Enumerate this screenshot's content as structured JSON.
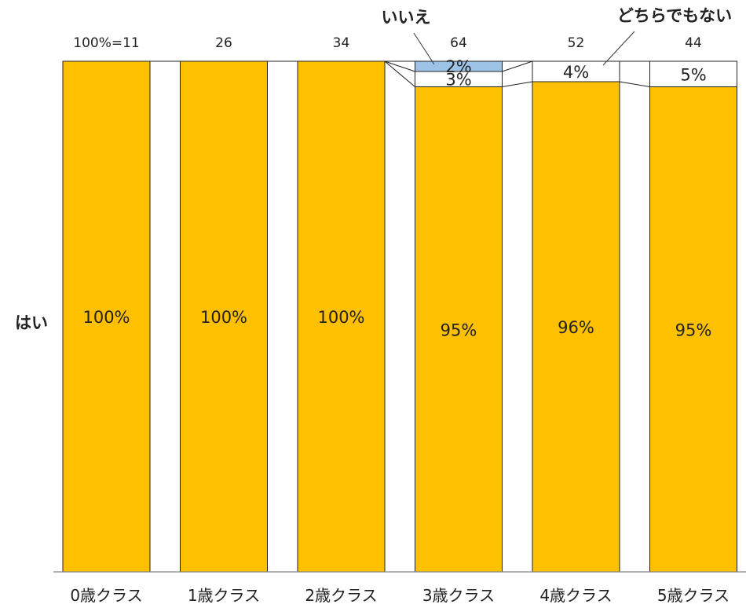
{
  "chart_data": {
    "type": "bar",
    "stacked": true,
    "categories": [
      "0歳クラス",
      "1歳クラス",
      "2歳クラス",
      "3歳クラス",
      "4歳クラス",
      "5歳クラス"
    ],
    "n_labels": [
      "100%=11",
      "26",
      "34",
      "64",
      "52",
      "44"
    ],
    "series": [
      {
        "name": "はい",
        "values": [
          100,
          100,
          100,
          95,
          96,
          95
        ],
        "labels": [
          "100%",
          "100%",
          "100%",
          "95%",
          "96%",
          "95%"
        ],
        "color": "#FFC000"
      },
      {
        "name": "どちらでもない",
        "values": [
          0,
          0,
          0,
          3,
          4,
          5
        ],
        "labels": [
          "",
          "",
          "",
          "3%",
          "4%",
          "5%"
        ],
        "color": "#FFFFFF"
      },
      {
        "name": "いいえ",
        "values": [
          0,
          0,
          0,
          2,
          0,
          0
        ],
        "labels": [
          "",
          "",
          "",
          "2%",
          "",
          ""
        ],
        "color": "#9DC3E6"
      }
    ],
    "ylim": [
      0,
      100
    ],
    "grid": false,
    "legend": "inline labels"
  }
}
